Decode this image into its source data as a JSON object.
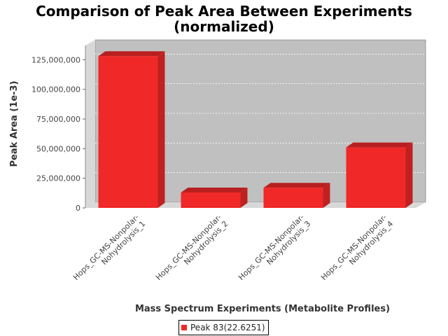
{
  "chart_data": {
    "type": "bar",
    "title_line1": "Comparison of Peak Area Between Experiments",
    "title_line2": "(normalized)",
    "xlabel": "Mass Spectrum Experiments (Metabolite Profiles)",
    "ylabel": "Peak Area (1e-3)",
    "categories": [
      [
        "Hops_GC-MS-Nonpolar-",
        "Nohydrolysis_1"
      ],
      [
        "Hops_GC-MS-Nonpolar-",
        "Nohydrolysis_2"
      ],
      [
        "Hops_GC-MS-Nonpolar-",
        "Nohydrolysis_3"
      ],
      [
        "Hops_GC-MS-Nonpolar-",
        "Nohydrolysis_4"
      ]
    ],
    "series": [
      {
        "name": "Peak 83(22.6251)",
        "values": [
          128000000,
          13000000,
          17000000,
          51000000
        ]
      }
    ],
    "ylim": [
      0,
      137000000
    ],
    "yticks": [
      0,
      25000000,
      50000000,
      75000000,
      100000000,
      125000000
    ],
    "ytick_labels": [
      "0",
      "25,000,000",
      "50,000,000",
      "75,000,000",
      "100,000,000",
      "125,000,000"
    ],
    "grid": true,
    "legend_position": "bottom",
    "colors": {
      "bar": "#f02828",
      "bar_top": "#b82020",
      "bar_side": "#c02020",
      "plot_bg": "#c0c0c0",
      "wall": "#d8d8d8"
    }
  }
}
